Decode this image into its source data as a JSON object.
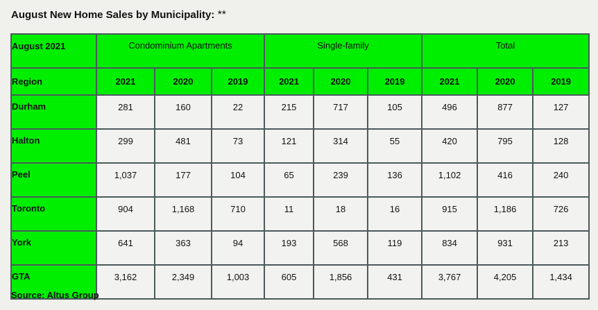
{
  "title": "August New Home Sales by Municipality:",
  "title_marker": "**",
  "table": {
    "corner_label": "August 2021",
    "groups": [
      "Condominium Apartments",
      "Single-family",
      "Total"
    ],
    "region_header": "Region",
    "years": [
      "2021",
      "2020",
      "2019"
    ],
    "rows": [
      {
        "region": "Durham",
        "values": [
          "281",
          "160",
          "22",
          "215",
          "717",
          "105",
          "496",
          "877",
          "127"
        ]
      },
      {
        "region": "Halton",
        "values": [
          "299",
          "481",
          "73",
          "121",
          "314",
          "55",
          "420",
          "795",
          "128"
        ]
      },
      {
        "region": "Peel",
        "values": [
          "1,037",
          "177",
          "104",
          "65",
          "239",
          "136",
          "1,102",
          "416",
          "240"
        ]
      },
      {
        "region": "Toronto",
        "values": [
          "904",
          "1,168",
          "710",
          "11",
          "18",
          "16",
          "915",
          "1,186",
          "726"
        ]
      },
      {
        "region": "York",
        "values": [
          "641",
          "363",
          "94",
          "193",
          "568",
          "119",
          "834",
          "931",
          "213"
        ]
      },
      {
        "region": "GTA",
        "values": [
          "3,162",
          "2,349",
          "1,003",
          "605",
          "1,856",
          "431",
          "3,767",
          "4,205",
          "1,434"
        ]
      }
    ]
  },
  "source": "Source: Altus Group",
  "colors": {
    "header_fill": "#00ee00",
    "cell_fill": "#f2f2f0",
    "border": "#4a5a5a"
  }
}
